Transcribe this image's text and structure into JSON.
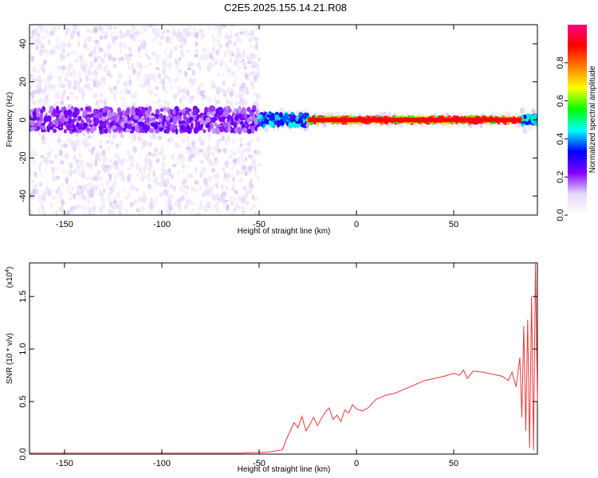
{
  "figure": {
    "title": "C2E5.2025.155.14.21.R08"
  },
  "chart_data": [
    {
      "type": "heatmap",
      "xlabel": "Height of straight line (km)",
      "ylabel": "Frequency (Hz)",
      "xlim": [
        -168,
        93
      ],
      "ylim": [
        -50,
        50
      ],
      "x_ticks": [
        -150,
        -100,
        -50,
        0,
        50
      ],
      "y_ticks": [
        -40,
        -20,
        0,
        20,
        40
      ],
      "colorbar": {
        "label": "Normalized spectral amplitude",
        "range": [
          0,
          1
        ],
        "ticks": [
          0.0,
          0.2,
          0.4,
          0.6,
          0.8
        ],
        "colormap": [
          "#ffffff",
          "#e6d8f8",
          "#8000ff",
          "#0000ff",
          "#00ffff",
          "#00ff00",
          "#ffff00",
          "#ff8000",
          "#ff0000",
          "#ff0080"
        ]
      },
      "bands": [
        {
          "x_range": [
            -168,
            -50
          ],
          "core_halfwidth_hz": 6,
          "scatter_halfwidth_hz": 50,
          "amplitude": 0.25
        },
        {
          "x_range": [
            -50,
            -25
          ],
          "core_halfwidth_hz": 3,
          "scatter_halfwidth_hz": 5,
          "amplitude": 0.45
        },
        {
          "x_range": [
            -25,
            85
          ],
          "core_halfwidth_hz": 1,
          "scatter_halfwidth_hz": 3,
          "amplitude": 0.95
        },
        {
          "x_range": [
            85,
            93
          ],
          "core_halfwidth_hz": 2,
          "scatter_halfwidth_hz": 6,
          "amplitude": 0.5
        }
      ]
    },
    {
      "type": "line",
      "xlabel": "Height of straight line (km)",
      "ylabel": "SNR (10 * v/v)",
      "y_multiplier": "(x10",
      "y_multiplier_exp": "4",
      "y_multiplier_close": ")",
      "xlim": [
        -168,
        93
      ],
      "ylim": [
        0,
        1.82
      ],
      "x_ticks": [
        -150,
        -100,
        -50,
        0,
        50
      ],
      "y_ticks": [
        0.0,
        0.5,
        1.0,
        1.5
      ],
      "series": [
        {
          "color": "#e83a3a",
          "x": [
            -168,
            -150,
            -100,
            -60,
            -45,
            -38,
            -36,
            -34,
            -32,
            -30,
            -28,
            -26,
            -24,
            -22,
            -20,
            -18,
            -16,
            -14,
            -12,
            -10,
            -8,
            -6,
            -4,
            -2,
            0,
            3,
            6,
            10,
            15,
            20,
            25,
            30,
            35,
            40,
            45,
            50,
            53,
            55,
            57,
            60,
            65,
            70,
            75,
            78,
            80,
            82,
            84,
            85,
            86,
            87,
            88,
            89,
            90,
            91,
            92,
            93
          ],
          "y": [
            0.01,
            0.01,
            0.01,
            0.01,
            0.02,
            0.04,
            0.14,
            0.22,
            0.3,
            0.25,
            0.36,
            0.22,
            0.28,
            0.35,
            0.27,
            0.34,
            0.4,
            0.44,
            0.33,
            0.37,
            0.31,
            0.42,
            0.39,
            0.47,
            0.43,
            0.41,
            0.44,
            0.52,
            0.56,
            0.58,
            0.62,
            0.66,
            0.7,
            0.72,
            0.74,
            0.77,
            0.75,
            0.8,
            0.72,
            0.79,
            0.78,
            0.76,
            0.74,
            0.7,
            0.78,
            0.64,
            0.92,
            0.35,
            1.22,
            0.22,
            1.28,
            0.06,
            1.5,
            0.04,
            1.82,
            0.5
          ]
        }
      ]
    }
  ]
}
